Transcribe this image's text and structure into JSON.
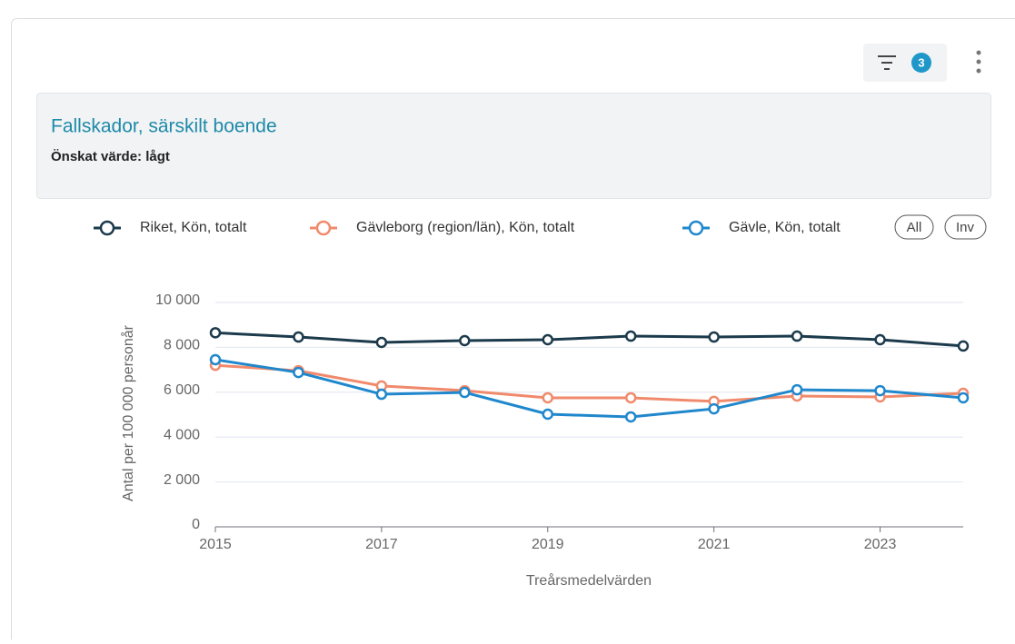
{
  "ui": {
    "filter_count": 3,
    "legend_buttons": [
      "All",
      "Inv"
    ]
  },
  "chart_data": {
    "type": "line",
    "title": "Fallskador, särskilt boende",
    "subtitle": "Önskat värde: lågt",
    "x_label": "Treårsmedelvärden",
    "y_label": "Antal per 100 000 personår",
    "x": [
      2015,
      2016,
      2017,
      2018,
      2019,
      2020,
      2021,
      2022,
      2023,
      2024
    ],
    "xlim": [
      2015,
      2024
    ],
    "xticks": [
      2015,
      2017,
      2019,
      2021,
      2023
    ],
    "ylim": [
      0,
      10000
    ],
    "yticks": [
      0,
      {
        "value": 2000,
        "label": "2 000"
      },
      {
        "value": 4000,
        "label": "4 000"
      },
      {
        "value": 6000,
        "label": "6 000"
      },
      {
        "value": 8000,
        "label": "8 000"
      },
      {
        "value": 10000,
        "label": "10 000"
      }
    ],
    "grid": true,
    "legend": "top",
    "series": [
      {
        "name": "Riket, Kön, totalt",
        "color": "#1b3a4b",
        "values": [
          8650,
          8460,
          8220,
          8300,
          8340,
          8500,
          8460,
          8500,
          8340,
          8060
        ]
      },
      {
        "name": "Gävleborg (region/län), Kön, totalt",
        "color": "#f08a6c",
        "values": [
          7200,
          6960,
          6280,
          6070,
          5750,
          5750,
          5590,
          5830,
          5790,
          5950
        ]
      },
      {
        "name": "Gävle, Kön, totalt",
        "color": "#1f87cc",
        "values": [
          7450,
          6880,
          5910,
          5990,
          5020,
          4900,
          5260,
          6110,
          6070,
          5750
        ]
      }
    ]
  }
}
